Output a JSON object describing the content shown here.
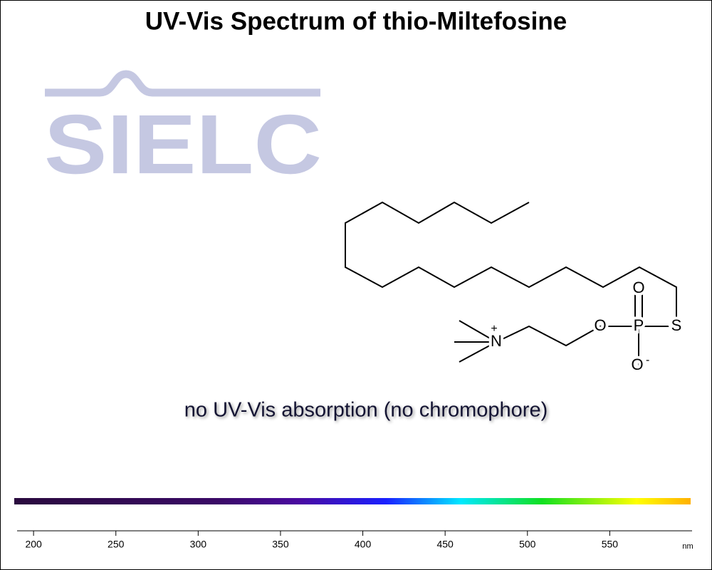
{
  "chart_data": {
    "type": "spectrum",
    "title": "UV-Vis Spectrum of thio-Miltefosine",
    "annotation": "no UV-Vis absorption (no chromophore)",
    "xlabel": "nm",
    "xlim": [
      190,
      600
    ],
    "xticks": [
      200,
      250,
      300,
      350,
      400,
      450,
      500,
      550
    ]
  },
  "logo": "SIELC",
  "structure": {
    "labels": [
      "O",
      "O",
      "P",
      "S",
      "O",
      "N"
    ],
    "charges": [
      "-",
      "+"
    ]
  }
}
